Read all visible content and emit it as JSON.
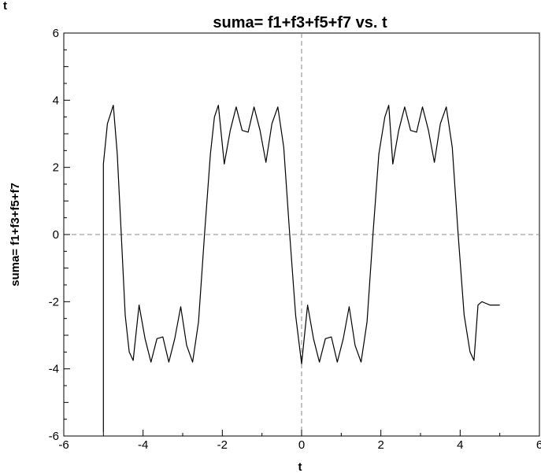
{
  "chart_data": {
    "type": "line",
    "title": "suma= f1+f3+f5+f7 vs. t",
    "corner_mark": "t",
    "xlabel": "t",
    "ylabel": "suma= f1+f3+f5+f7",
    "xlim": [
      -6,
      6
    ],
    "ylim": [
      -6,
      6
    ],
    "x_ticks": [
      "-6",
      "-4",
      "-2",
      "0",
      "2",
      "4",
      "6"
    ],
    "y_ticks": [
      "-6",
      "-4",
      "-2",
      "0",
      "2",
      "4",
      "6"
    ],
    "grid": false,
    "reference_lines": [
      "x=0 (dashed)",
      "y=0 (dashed)"
    ],
    "series": [
      {
        "color": "#000000",
        "x": [
          -5.0,
          -5.0,
          -4.9,
          -4.75,
          -4.65,
          -4.55,
          -4.45,
          -4.35,
          -4.25,
          -4.1,
          -3.95,
          -3.8,
          -3.65,
          -3.5,
          -3.35,
          -3.2,
          -3.05,
          -2.9,
          -2.75,
          -2.6,
          -2.45,
          -2.3,
          -2.2,
          -2.1,
          -1.95,
          -1.8,
          -1.65,
          -1.5,
          -1.35,
          -1.2,
          -1.05,
          -0.9,
          -0.75,
          -0.6,
          -0.45,
          -0.3,
          -0.15,
          0.0,
          0.15,
          0.3,
          0.45,
          0.6,
          0.75,
          0.9,
          1.05,
          1.2,
          1.35,
          1.5,
          1.65,
          1.8,
          1.95,
          2.1,
          2.2,
          2.3,
          2.45,
          2.6,
          2.75,
          2.9,
          3.05,
          3.2,
          3.35,
          3.5,
          3.65,
          3.8,
          3.95,
          4.1,
          4.25,
          4.35,
          4.45,
          4.55,
          4.65,
          4.75,
          4.85,
          5.0
        ],
        "y": [
          -5.9,
          2.1,
          3.3,
          3.85,
          2.4,
          0.0,
          -2.4,
          -3.5,
          -3.75,
          -2.1,
          -3.1,
          -3.8,
          -3.1,
          -3.05,
          -3.8,
          -3.1,
          -2.15,
          -3.3,
          -3.8,
          -2.6,
          0.0,
          2.4,
          3.5,
          3.85,
          2.1,
          3.1,
          3.8,
          3.1,
          3.05,
          3.8,
          3.1,
          2.15,
          3.3,
          3.8,
          2.6,
          0.0,
          -2.4,
          -3.85,
          -2.1,
          -3.1,
          -3.8,
          -3.1,
          -3.05,
          -3.8,
          -3.1,
          -2.15,
          -3.3,
          -3.8,
          -2.6,
          0.0,
          2.4,
          3.5,
          3.85,
          2.1,
          3.1,
          3.8,
          3.1,
          3.05,
          3.8,
          3.1,
          2.15,
          3.3,
          3.8,
          2.6,
          0.0,
          -2.4,
          -3.5,
          -3.75,
          -2.1,
          -2.0,
          -2.05,
          -2.1,
          -2.1,
          -2.1
        ]
      }
    ]
  }
}
